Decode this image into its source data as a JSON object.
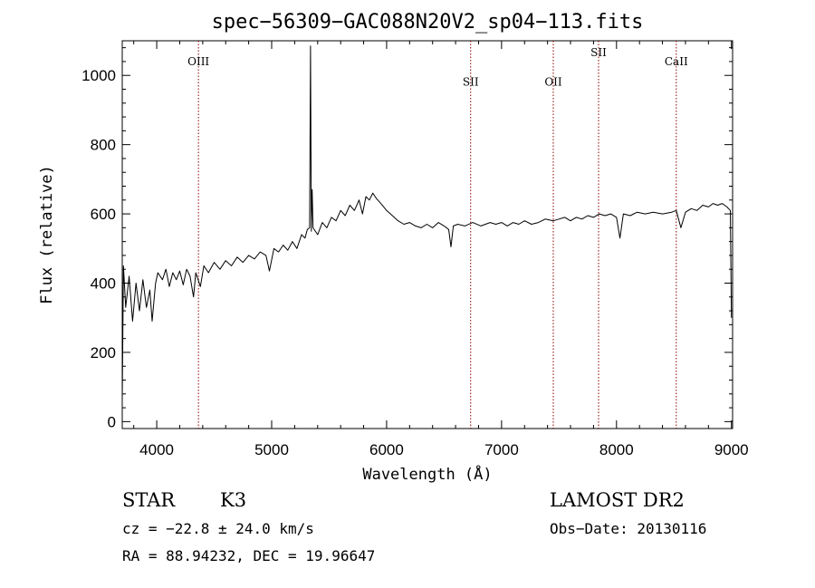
{
  "chart_data": {
    "type": "line",
    "title": "spec−56309−GAC088N20V2_sp04−113.fits",
    "xlabel": "Wavelength (Å)",
    "ylabel": "Flux (relative)",
    "xlim": [
      3700,
      9010
    ],
    "ylim": [
      -20,
      1100
    ],
    "x_ticks": [
      4000,
      5000,
      6000,
      7000,
      8000,
      9000
    ],
    "y_ticks": [
      0,
      200,
      400,
      600,
      800,
      1000
    ],
    "grid": false,
    "series": [
      {
        "color": "#000000",
        "points": [
          [
            3700,
            60
          ],
          [
            3710,
            450
          ],
          [
            3730,
            330
          ],
          [
            3760,
            420
          ],
          [
            3790,
            290
          ],
          [
            3820,
            400
          ],
          [
            3850,
            320
          ],
          [
            3880,
            410
          ],
          [
            3910,
            330
          ],
          [
            3940,
            380
          ],
          [
            3960,
            290
          ],
          [
            3990,
            400
          ],
          [
            4010,
            430
          ],
          [
            4050,
            410
          ],
          [
            4080,
            440
          ],
          [
            4110,
            390
          ],
          [
            4140,
            430
          ],
          [
            4170,
            410
          ],
          [
            4200,
            435
          ],
          [
            4230,
            395
          ],
          [
            4260,
            440
          ],
          [
            4290,
            420
          ],
          [
            4320,
            360
          ],
          [
            4340,
            430
          ],
          [
            4380,
            390
          ],
          [
            4410,
            450
          ],
          [
            4450,
            430
          ],
          [
            4500,
            460
          ],
          [
            4550,
            440
          ],
          [
            4600,
            465
          ],
          [
            4650,
            450
          ],
          [
            4700,
            475
          ],
          [
            4750,
            460
          ],
          [
            4800,
            480
          ],
          [
            4850,
            470
          ],
          [
            4900,
            490
          ],
          [
            4950,
            480
          ],
          [
            4980,
            435
          ],
          [
            5020,
            500
          ],
          [
            5060,
            490
          ],
          [
            5100,
            510
          ],
          [
            5140,
            495
          ],
          [
            5180,
            520
          ],
          [
            5220,
            500
          ],
          [
            5260,
            540
          ],
          [
            5290,
            530
          ],
          [
            5310,
            555
          ],
          [
            5330,
            560
          ],
          [
            5338,
            1085
          ],
          [
            5345,
            550
          ],
          [
            5352,
            670
          ],
          [
            5360,
            560
          ],
          [
            5400,
            540
          ],
          [
            5440,
            575
          ],
          [
            5480,
            560
          ],
          [
            5520,
            590
          ],
          [
            5560,
            580
          ],
          [
            5600,
            610
          ],
          [
            5640,
            595
          ],
          [
            5680,
            625
          ],
          [
            5720,
            610
          ],
          [
            5760,
            640
          ],
          [
            5790,
            600
          ],
          [
            5820,
            650
          ],
          [
            5850,
            640
          ],
          [
            5880,
            660
          ],
          [
            5910,
            645
          ],
          [
            5950,
            630
          ],
          [
            6000,
            610
          ],
          [
            6050,
            595
          ],
          [
            6100,
            580
          ],
          [
            6150,
            570
          ],
          [
            6200,
            575
          ],
          [
            6250,
            565
          ],
          [
            6300,
            560
          ],
          [
            6350,
            570
          ],
          [
            6400,
            560
          ],
          [
            6450,
            575
          ],
          [
            6500,
            565
          ],
          [
            6540,
            555
          ],
          [
            6560,
            505
          ],
          [
            6580,
            565
          ],
          [
            6620,
            570
          ],
          [
            6680,
            565
          ],
          [
            6750,
            575
          ],
          [
            6820,
            565
          ],
          [
            6900,
            575
          ],
          [
            6950,
            570
          ],
          [
            7000,
            575
          ],
          [
            7050,
            565
          ],
          [
            7100,
            575
          ],
          [
            7150,
            570
          ],
          [
            7200,
            580
          ],
          [
            7260,
            570
          ],
          [
            7320,
            575
          ],
          [
            7380,
            585
          ],
          [
            7450,
            580
          ],
          [
            7500,
            585
          ],
          [
            7550,
            590
          ],
          [
            7600,
            580
          ],
          [
            7650,
            590
          ],
          [
            7700,
            585
          ],
          [
            7750,
            595
          ],
          [
            7800,
            590
          ],
          [
            7850,
            600
          ],
          [
            7900,
            595
          ],
          [
            7950,
            600
          ],
          [
            8000,
            590
          ],
          [
            8030,
            530
          ],
          [
            8060,
            600
          ],
          [
            8120,
            595
          ],
          [
            8180,
            605
          ],
          [
            8250,
            600
          ],
          [
            8320,
            605
          ],
          [
            8400,
            600
          ],
          [
            8480,
            605
          ],
          [
            8520,
            610
          ],
          [
            8560,
            560
          ],
          [
            8600,
            605
          ],
          [
            8650,
            615
          ],
          [
            8700,
            610
          ],
          [
            8750,
            625
          ],
          [
            8800,
            620
          ],
          [
            8840,
            630
          ],
          [
            8880,
            625
          ],
          [
            8920,
            630
          ],
          [
            8960,
            620
          ],
          [
            8990,
            610
          ],
          [
            9000,
            300
          ]
        ]
      }
    ],
    "lines": [
      {
        "label": "OIII",
        "x": 4363,
        "label_y": 1030
      },
      {
        "label": "SII",
        "x": 6731,
        "label_y": 970
      },
      {
        "label": "OII",
        "x": 7450,
        "label_y": 970
      },
      {
        "label": "SII",
        "x": 7844,
        "label_y": 1055
      },
      {
        "label": "CaII",
        "x": 8520,
        "label_y": 1030
      }
    ],
    "line_color": "#8b0000"
  },
  "info": {
    "class_label": "STAR",
    "subclass": "K3",
    "survey": "LAMOST DR2",
    "redshift": "cz = −22.8 ± 24.0 km/s",
    "obs_date": "Obs−Date: 20130116",
    "coords": "RA =  88.94232, DEC =  19.96647"
  }
}
